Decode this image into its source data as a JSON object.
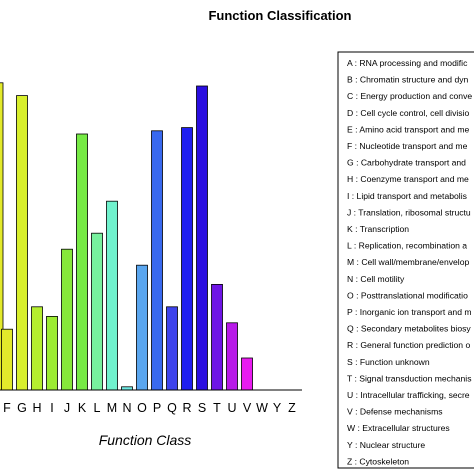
{
  "chart_data": {
    "type": "bar",
    "title": "Function Classification",
    "xlabel": "Function Class",
    "ylabel": "",
    "ylim": [
      0,
      100
    ],
    "grid": false,
    "legend_position": "right",
    "categories": [
      "F",
      "G",
      "H",
      "I",
      "J",
      "K",
      "L",
      "M",
      "N",
      "O",
      "P",
      "Q",
      "R",
      "S",
      "T",
      "U",
      "V",
      "W",
      "Y",
      "Z"
    ],
    "values": [
      19,
      92,
      26,
      23,
      44,
      80,
      49,
      59,
      1,
      39,
      81,
      26,
      82,
      95,
      33,
      21,
      10,
      0,
      0,
      0
    ],
    "colors": [
      "#e3ea2b",
      "#d8ef2c",
      "#b5ee2f",
      "#9ceb32",
      "#86e83a",
      "#76ea45",
      "#77f19e",
      "#70f2cd",
      "#6fe8e2",
      "#5aa6ef",
      "#3969ef",
      "#3e43ec",
      "#1f1ef0",
      "#2a0ee0",
      "#6e15e6",
      "#b81ae8",
      "#e81bf0",
      "#e81bf0",
      "#e81bf0",
      "#e81bf0"
    ],
    "partial_bar": {
      "value": 96,
      "color": "#e3ea2b"
    },
    "legend": [
      "A : RNA processing and modific",
      "B : Chromatin structure and dyn",
      "C : Energy production and conve",
      "D : Cell cycle control, cell divisio",
      "E : Amino acid transport and me",
      "F : Nucleotide transport and me",
      "G : Carbohydrate transport and",
      "H : Coenzyme transport and me",
      "I : Lipid transport and metabolis",
      "J : Translation, ribosomal structu",
      "K : Transcription",
      "L : Replication, recombination a",
      "M : Cell wall/membrane/envelop",
      "N : Cell motility",
      "O : Posttranslational modificatio",
      "P : Inorganic ion transport and m",
      "Q : Secondary metabolites biosy",
      "R : General function prediction o",
      "S : Function unknown",
      "T : Signal transduction mechanis",
      "U : Intracellular trafficking, secre",
      "V : Defense mechanisms",
      "W : Extracellular structures",
      "Y : Nuclear structure",
      "Z : Cytoskeleton"
    ]
  }
}
